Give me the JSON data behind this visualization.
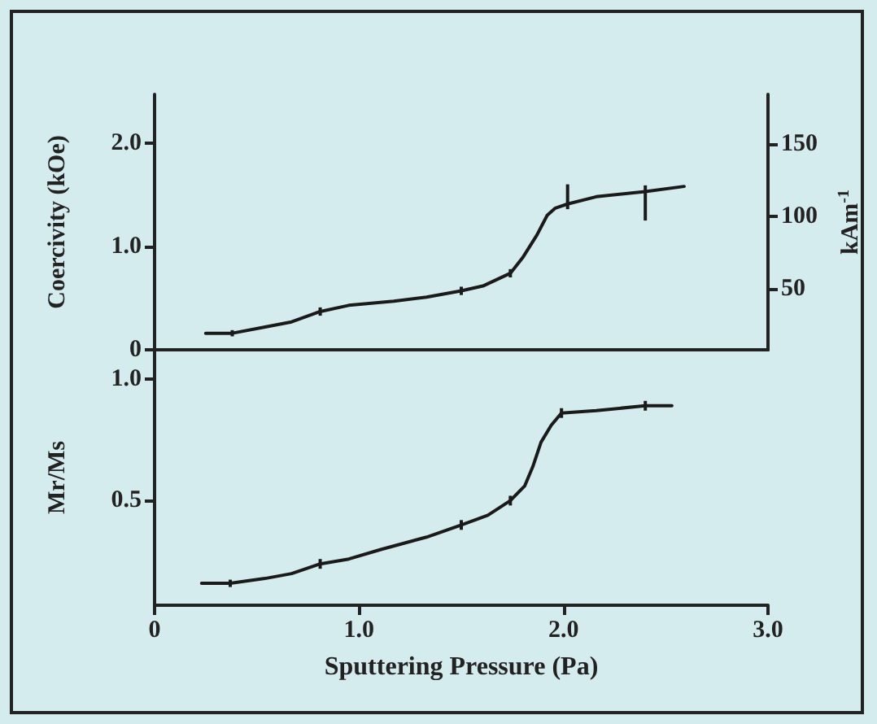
{
  "chart_data": [
    {
      "type": "line",
      "ylabel": "Coercivity (kOe)",
      "y2label": "kAm$^{-1}$",
      "xlim": [
        0,
        3
      ],
      "ylim": [
        0,
        2.47
      ],
      "yticks": [
        {
          "value": 0,
          "label": "0"
        },
        {
          "value": 1,
          "label": "1.0"
        },
        {
          "value": 2,
          "label": "2.0"
        }
      ],
      "y2lim": [
        8,
        184
      ],
      "y2ticks": [
        50,
        100,
        150
      ],
      "tick_labels": "y",
      "grid": false,
      "marker": "none",
      "line_style": "solid",
      "series": [
        {
          "color": "#1a1a1a",
          "x": [
            0.25,
            0.38,
            0.54,
            0.67,
            0.81,
            0.95,
            1.17,
            1.33,
            1.5,
            1.61,
            1.74,
            1.8,
            1.87,
            1.92,
            1.96,
            2.02,
            2.16,
            2.4,
            2.59
          ],
          "values": [
            0.16,
            0.16,
            0.22,
            0.27,
            0.37,
            0.43,
            0.47,
            0.51,
            0.57,
            0.62,
            0.74,
            0.89,
            1.11,
            1.3,
            1.37,
            1.41,
            1.48,
            1.53,
            1.58
          ],
          "errors": [
            null,
            0.03,
            null,
            null,
            0.04,
            null,
            null,
            null,
            0.04,
            null,
            0.04,
            null,
            null,
            null,
            null,
            [
              1.36,
              1.6
            ],
            null,
            [
              1.25,
              1.59
            ],
            null
          ]
        }
      ]
    },
    {
      "type": "line",
      "ylabel": "Mr/Ms",
      "xlabel": "Sputtering Pressure (Pa)",
      "xlim": [
        0,
        3
      ],
      "xticks": [
        {
          "value": 0,
          "label": "0"
        },
        {
          "value": 1,
          "label": "1.0"
        },
        {
          "value": 2,
          "label": "2.0"
        },
        {
          "value": 3,
          "label": "3.0"
        }
      ],
      "ylim": [
        0.07,
        1.12
      ],
      "yticks": [
        0.5,
        {
          "value": 1,
          "label": "1.0"
        }
      ],
      "grid": false,
      "marker": "none",
      "line_style": "solid",
      "series": [
        {
          "color": "#1a1a1a",
          "x": [
            0.23,
            0.37,
            0.54,
            0.67,
            0.81,
            0.95,
            1.11,
            1.33,
            1.5,
            1.63,
            1.74,
            1.81,
            1.85,
            1.89,
            1.94,
            1.99,
            2.16,
            2.4,
            2.53
          ],
          "values": [
            0.16,
            0.16,
            0.18,
            0.2,
            0.24,
            0.26,
            0.3,
            0.35,
            0.4,
            0.44,
            0.5,
            0.56,
            0.64,
            0.74,
            0.81,
            0.86,
            0.87,
            0.89,
            0.89
          ],
          "errors": [
            null,
            0.015,
            null,
            null,
            0.02,
            null,
            null,
            null,
            0.02,
            null,
            0.02,
            null,
            null,
            null,
            null,
            0.02,
            null,
            0.02,
            null
          ]
        }
      ]
    }
  ]
}
